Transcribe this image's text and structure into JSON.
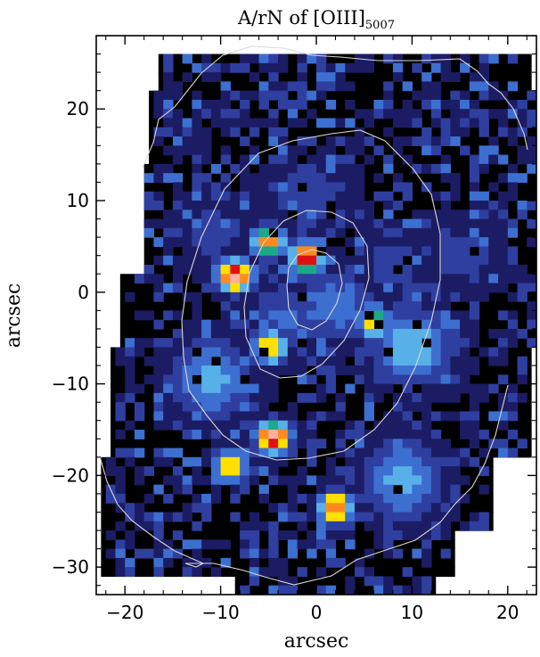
{
  "chart_data": {
    "type": "heatmap",
    "title": {
      "main": "A/rN of [OIII]",
      "subscript": "5007"
    },
    "xlabel": "arcsec",
    "ylabel": "arcsec",
    "xlim": [
      -23,
      23
    ],
    "ylim": [
      -33,
      28
    ],
    "x_ticks": [
      -20,
      -10,
      0,
      10,
      20
    ],
    "x_tick_labels": [
      "−20",
      "−10",
      "0",
      "10",
      "20"
    ],
    "y_ticks": [
      -30,
      -20,
      -10,
      0,
      10,
      20
    ],
    "y_tick_labels": [
      "−30",
      "−20",
      "−10",
      "0",
      "10",
      "20"
    ],
    "grid": false,
    "colormap": [
      "#000000",
      "#1c1c64",
      "#2f3fa0",
      "#3d6fd0",
      "#58b0e8",
      "#1ea88a",
      "#ffe000",
      "#ff8a20",
      "#e01010",
      "#ffb0a0"
    ],
    "hotspots": [
      {
        "x": -8.5,
        "y": 1.8,
        "value": 9.5
      },
      {
        "x": -1.0,
        "y": 3.8,
        "value": 8.5
      },
      {
        "x": -5.0,
        "y": 5.5,
        "value": 7.5
      },
      {
        "x": -4.8,
        "y": -6.0,
        "value": 7.0
      },
      {
        "x": 6.0,
        "y": -3.2,
        "value": 6.5
      },
      {
        "x": -4.5,
        "y": -15.8,
        "value": 9.0
      },
      {
        "x": 2.0,
        "y": -23.5,
        "value": 8.0
      },
      {
        "x": -9.0,
        "y": -19.0,
        "value": 6.5
      },
      {
        "x": 10.0,
        "y": -6.0,
        "value": 4.5
      },
      {
        "x": -11.0,
        "y": -9.5,
        "value": 4.0
      },
      {
        "x": 9.0,
        "y": -20.5,
        "value": 4.0
      }
    ],
    "extended_emission": [
      {
        "x": 2.0,
        "y": -1.5,
        "value": 3.0
      },
      {
        "x": -3.0,
        "y": -3.0,
        "value": 2.6
      },
      {
        "x": -1.0,
        "y": 10.5,
        "value": 2.4
      },
      {
        "x": 8.0,
        "y": 3.0,
        "value": 2.0
      },
      {
        "x": 15.0,
        "y": 4.0,
        "value": 2.0
      },
      {
        "x": -11.0,
        "y": 6.5,
        "value": 2.0
      }
    ],
    "contours": [
      "continuum isophote (outer)",
      "continuum isophote (middle)",
      "continuum isophote (inner)",
      "continuum isophote (core)"
    ]
  }
}
